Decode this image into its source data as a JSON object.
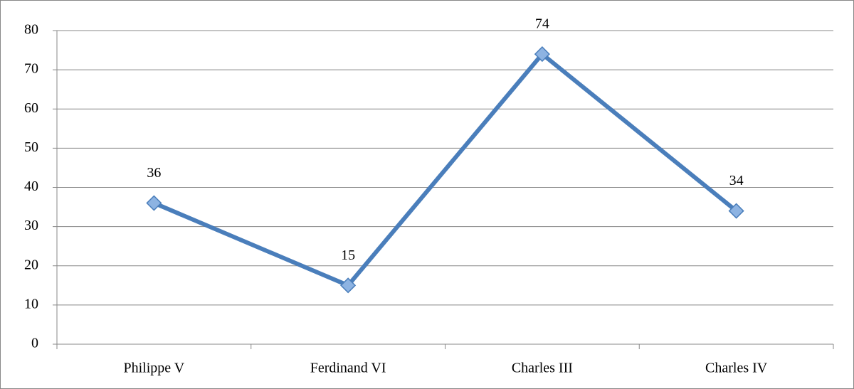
{
  "chart_data": {
    "type": "line",
    "categories": [
      "Philippe V",
      "Ferdinand VI",
      "Charles III",
      "Charles IV"
    ],
    "series": [
      {
        "name": null,
        "color": "#4a7ebb",
        "marker_color": "#8db3e2",
        "values": [
          36,
          15,
          74,
          34
        ]
      }
    ],
    "ylim": [
      0,
      80
    ],
    "yticks": [
      0,
      10,
      20,
      30,
      40,
      50,
      60,
      70,
      80
    ],
    "grid": true,
    "data_labels": true
  }
}
